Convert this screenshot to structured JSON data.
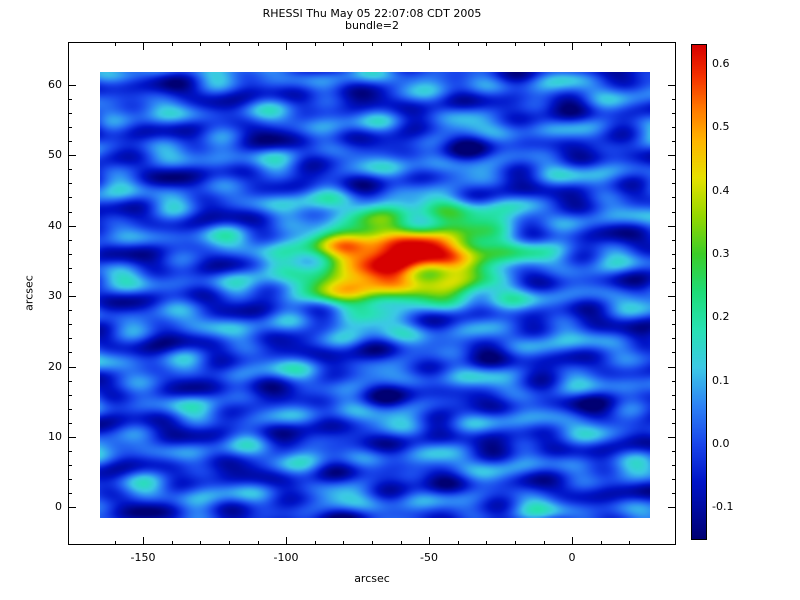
{
  "title": {
    "line1": "RHESSI Thu May 05 22:07:08 CDT 2005",
    "line2": "bundle=2"
  },
  "chart_data": {
    "type": "heatmap",
    "title": "RHESSI Thu May 05 22:07:08 CDT 2005",
    "subtitle": "bundle=2",
    "xlabel": "arcsec",
    "ylabel": "arcsec",
    "x_range": [
      -165.1,
      27.2
    ],
    "y_range": [
      -1.5,
      61.8
    ],
    "x_major_ticks": [
      {
        "v": -150,
        "label": "-150"
      },
      {
        "v": -100,
        "label": "-100"
      },
      {
        "v": -50,
        "label": "-50"
      },
      {
        "v": 0,
        "label": "0"
      }
    ],
    "x_minor_ticks": [
      -160,
      -140,
      -130,
      -120,
      -110,
      -90,
      -80,
      -70,
      -60,
      -40,
      -30,
      -20,
      -10,
      10,
      20
    ],
    "y_major_ticks": [
      {
        "v": 0,
        "label": "0"
      },
      {
        "v": 10,
        "label": "10"
      },
      {
        "v": 20,
        "label": "20"
      },
      {
        "v": 30,
        "label": "30"
      },
      {
        "v": 40,
        "label": "40"
      },
      {
        "v": 50,
        "label": "50"
      },
      {
        "v": 60,
        "label": "60"
      }
    ],
    "y_minor_ticks": [
      2,
      4,
      6,
      8,
      12,
      14,
      16,
      18,
      22,
      24,
      26,
      28,
      32,
      34,
      36,
      38,
      42,
      44,
      46,
      48,
      52,
      54,
      56,
      58
    ],
    "colorbar": {
      "range": [
        -0.15,
        0.63
      ],
      "ticks": [
        -0.1,
        0.0,
        0.1,
        0.2,
        0.3,
        0.4,
        0.5,
        0.6
      ],
      "tick_labels": [
        "-0.1",
        "0.0",
        "0.1",
        "0.2",
        "0.3",
        "0.4",
        "0.5",
        "0.6"
      ],
      "minor_ticks": [
        -0.05,
        0.05,
        0.15,
        0.25,
        0.35,
        0.45,
        0.55
      ]
    },
    "colormap": [
      {
        "v": -0.15,
        "rgb": [
          0,
          0,
          115
        ]
      },
      {
        "v": -0.06,
        "rgb": [
          0,
          20,
          200
        ]
      },
      {
        "v": 0.0,
        "rgb": [
          25,
          70,
          235
        ]
      },
      {
        "v": 0.06,
        "rgb": [
          45,
          130,
          245
        ]
      },
      {
        "v": 0.12,
        "rgb": [
          60,
          200,
          230
        ]
      },
      {
        "v": 0.18,
        "rgb": [
          40,
          225,
          180
        ]
      },
      {
        "v": 0.24,
        "rgb": [
          30,
          220,
          120
        ]
      },
      {
        "v": 0.3,
        "rgb": [
          60,
          205,
          40
        ]
      },
      {
        "v": 0.36,
        "rgb": [
          150,
          215,
          0
        ]
      },
      {
        "v": 0.42,
        "rgb": [
          230,
          225,
          0
        ]
      },
      {
        "v": 0.48,
        "rgb": [
          255,
          180,
          0
        ]
      },
      {
        "v": 0.53,
        "rgb": [
          255,
          120,
          0
        ]
      },
      {
        "v": 0.58,
        "rgb": [
          245,
          50,
          0
        ]
      },
      {
        "v": 0.63,
        "rgb": [
          215,
          0,
          0
        ]
      }
    ],
    "field": {
      "gaussians": [
        {
          "x": -60,
          "y": 35.5,
          "sx": 23,
          "sy": 4.2,
          "amp": 0.6
        },
        {
          "x": -74,
          "y": 31.5,
          "sx": 9,
          "sy": 3.0,
          "amp": 0.18
        },
        {
          "x": -38,
          "y": 38,
          "sx": 10,
          "sy": 3.5,
          "amp": 0.1
        }
      ],
      "ripples": [
        {
          "amp": 0.05,
          "kx": 0.02,
          "ky": 1.05,
          "ph": 0.4
        },
        {
          "amp": 0.04,
          "kx": 0.2,
          "ky": 0.9,
          "ph": 2.0
        },
        {
          "amp": 0.038,
          "kx": -0.16,
          "ky": 0.85,
          "ph": 4.5
        },
        {
          "amp": 0.028,
          "kx": 0.11,
          "ky": 0.5,
          "ph": 1.1
        },
        {
          "amp": 0.025,
          "kx": 0.33,
          "ky": 0.08,
          "ph": 5.0
        },
        {
          "amp": 0.022,
          "kx": -0.07,
          "ky": 1.85,
          "ph": 0.8
        },
        {
          "amp": 0.02,
          "kx": 0.26,
          "ky": -0.55,
          "ph": 3.1
        }
      ]
    },
    "peak": {
      "x_arcsec": -60,
      "y_arcsec": 35.5,
      "peak_value": 0.62
    }
  }
}
